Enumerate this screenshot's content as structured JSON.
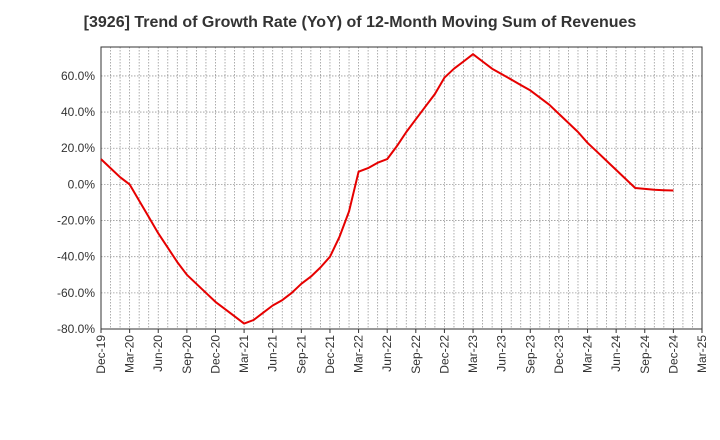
{
  "chart_data": {
    "type": "line",
    "title": "[3926]  Trend of Growth Rate (YoY) of 12-Month Moving Sum of Revenues",
    "xlabel": "",
    "ylabel": "",
    "x_tick_labels": [
      "Dec-19",
      "Mar-20",
      "Jun-20",
      "Sep-20",
      "Dec-20",
      "Mar-21",
      "Jun-21",
      "Sep-21",
      "Dec-21",
      "Mar-22",
      "Jun-22",
      "Sep-22",
      "Dec-22",
      "Mar-23",
      "Jun-23",
      "Sep-23",
      "Dec-23",
      "Mar-24",
      "Jun-24",
      "Sep-24",
      "Dec-24",
      "Mar-25"
    ],
    "y_tick_labels": [
      "60.0%",
      "40.0%",
      "20.0%",
      "0.0%",
      "-20.0%",
      "-40.0%",
      "-60.0%",
      "-80.0%"
    ],
    "y_tick_values": [
      60,
      40,
      20,
      0,
      -20,
      -40,
      -60,
      -80
    ],
    "ylim": [
      -80,
      76
    ],
    "grid": true,
    "grid_style": "dotted",
    "series": [
      {
        "name": "",
        "color": "#e60000",
        "x": [
          "Dec-19",
          "Jan-20",
          "Feb-20",
          "Mar-20",
          "Apr-20",
          "May-20",
          "Jun-20",
          "Jul-20",
          "Aug-20",
          "Sep-20",
          "Oct-20",
          "Nov-20",
          "Dec-20",
          "Jan-21",
          "Feb-21",
          "Mar-21",
          "Apr-21",
          "May-21",
          "Jun-21",
          "Jul-21",
          "Aug-21",
          "Sep-21",
          "Oct-21",
          "Nov-21",
          "Dec-21",
          "Jan-22",
          "Feb-22",
          "Mar-22",
          "Apr-22",
          "May-22",
          "Jun-22",
          "Jul-22",
          "Aug-22",
          "Sep-22",
          "Oct-22",
          "Nov-22",
          "Dec-22",
          "Jan-23",
          "Feb-23",
          "Mar-23",
          "Apr-23",
          "May-23",
          "Jun-23",
          "Jul-23",
          "Aug-23",
          "Sep-23",
          "Oct-23",
          "Nov-23",
          "Dec-23",
          "Jan-24",
          "Feb-24",
          "Mar-24",
          "Apr-24",
          "May-24",
          "Jun-24",
          "Jul-24",
          "Aug-24",
          "Sep-24",
          "Oct-24",
          "Nov-24",
          "Dec-24"
        ],
        "values": [
          14,
          9,
          4,
          0,
          -9,
          -18,
          -27,
          -35,
          -43,
          -50,
          -55,
          -60,
          -65,
          -69,
          -73,
          -77,
          -75,
          -71,
          -67,
          -64,
          -60,
          -55,
          -51,
          -46,
          -40,
          -29,
          -15,
          7,
          9,
          12,
          14,
          21,
          29,
          36,
          43,
          50,
          59,
          64,
          68,
          72,
          68,
          64,
          61,
          58,
          55,
          52,
          48,
          44,
          39,
          34,
          29,
          23,
          18,
          13,
          8,
          3,
          -2,
          -2.5,
          -3,
          -3.2,
          -3.4
        ]
      }
    ]
  }
}
